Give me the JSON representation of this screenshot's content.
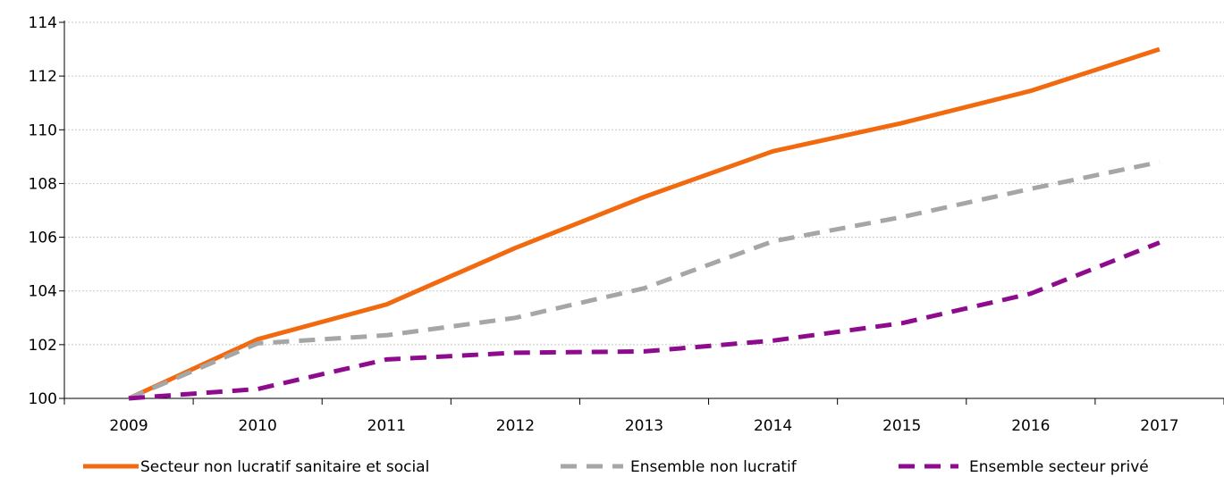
{
  "chart_data": {
    "type": "line",
    "title": "",
    "xlabel": "",
    "ylabel": "",
    "categories": [
      "2009",
      "2010",
      "2011",
      "2012",
      "2013",
      "2014",
      "2015",
      "2016",
      "2017"
    ],
    "ylim": [
      100,
      114
    ],
    "yticks": [
      "100",
      "102",
      "104",
      "106",
      "108",
      "110",
      "112",
      "114"
    ],
    "grid": true,
    "legend_position": "bottom",
    "series": [
      {
        "name": "Secteur non lucratif sanitaire et social",
        "color": "#F26A10",
        "style": "solid",
        "values": [
          100,
          102.2,
          103.5,
          105.6,
          107.5,
          109.2,
          110.25,
          111.45,
          113.0
        ]
      },
      {
        "name": "Ensemble non lucratif",
        "color": "#A6A6A6",
        "style": "dashed",
        "values": [
          100,
          102.05,
          102.35,
          103.0,
          104.1,
          105.85,
          106.75,
          107.8,
          108.8
        ]
      },
      {
        "name": "Ensemble secteur privé",
        "color": "#8E0B8E",
        "style": "dashed",
        "values": [
          100,
          100.35,
          101.45,
          101.7,
          101.75,
          102.15,
          102.8,
          103.9,
          105.8
        ]
      }
    ]
  }
}
